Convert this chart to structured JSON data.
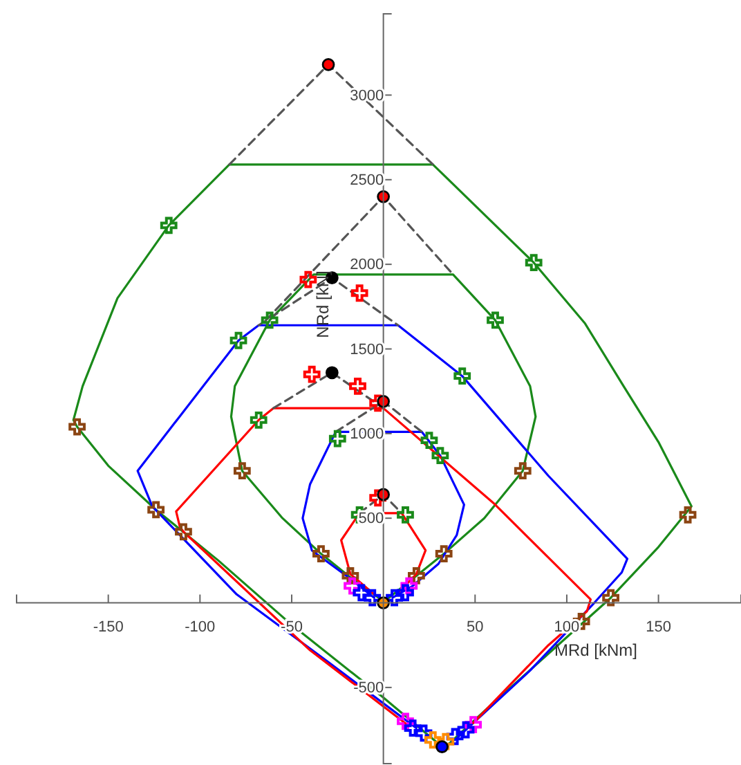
{
  "chart_data": {
    "type": "line",
    "xlabel": "MRd [kNm]",
    "ylabel": "NRd [kN]",
    "xlim": [
      -200,
      195
    ],
    "ylim": [
      -950,
      3480
    ],
    "xticks": [
      -150,
      -100,
      -50,
      50,
      100,
      150
    ],
    "yticks": [
      -500,
      500,
      1000,
      1500,
      2000,
      2500,
      3000
    ],
    "grid": false,
    "series": [
      {
        "color": "#1a8a1a",
        "marker": "none",
        "line_style": "solid",
        "x": [
          32,
          0,
          -50,
          -90,
          -124,
          -150,
          -167,
          -169,
          -164,
          -145,
          -117,
          -84,
          27,
          82,
          110,
          131,
          150,
          168,
          150,
          124,
          90,
          55,
          35
        ],
        "values": [
          -850,
          -560,
          -130,
          250,
          550,
          810,
          1040,
          1080,
          1280,
          1800,
          2230,
          2590,
          2590,
          2010,
          1650,
          1280,
          950,
          570,
          330,
          30,
          -300,
          -640,
          -840
        ]
      },
      {
        "color": "#1a8a1a",
        "marker": "none",
        "line_style": "solid",
        "x": [
          0,
          -18,
          -34,
          -55,
          -77,
          -83,
          -81,
          -62,
          -38,
          38,
          61,
          80,
          83,
          76,
          55,
          33,
          18,
          3
        ],
        "values": [
          10,
          150,
          290,
          500,
          780,
          1100,
          1280,
          1670,
          1940,
          1940,
          1670,
          1280,
          1100,
          780,
          500,
          290,
          160,
          30
        ]
      },
      {
        "color": "#0000ff",
        "marker": "none",
        "line_style": "solid",
        "x": [
          18,
          -30,
          -80,
          -126,
          -134,
          -79,
          -68,
          8,
          43,
          90,
          133,
          130,
          115,
          80,
          39
        ],
        "values": [
          -740,
          -350,
          50,
          570,
          780,
          1550,
          1640,
          1640,
          1340,
          750,
          260,
          180,
          0,
          -400,
          -810
        ]
      },
      {
        "color": "#0000ff",
        "marker": "none",
        "line_style": "solid",
        "x": [
          -5,
          -19,
          -39,
          -44,
          -40,
          -26,
          21,
          31,
          44,
          40,
          30,
          16,
          5
        ],
        "values": [
          30,
          150,
          310,
          500,
          700,
          1010,
          1010,
          870,
          580,
          400,
          230,
          100,
          30
        ]
      },
      {
        "color": "#ff0000",
        "marker": "none",
        "line_style": "solid",
        "x": [
          13,
          -40,
          -109,
          -111,
          -113,
          -68,
          -60,
          0,
          60,
          113,
          111,
          90,
          49
        ],
        "values": [
          -720,
          -280,
          420,
          450,
          540,
          1080,
          1150,
          1150,
          590,
          20,
          -50,
          -250,
          -710
        ]
      },
      {
        "color": "#ff0000",
        "marker": "none",
        "line_style": "solid",
        "x": [
          -5,
          -18,
          -23,
          -13,
          10,
          23,
          18,
          8
        ],
        "values": [
          50,
          170,
          370,
          530,
          530,
          310,
          170,
          60
        ]
      },
      {
        "color": "#555555",
        "marker": "none",
        "line_style": "dashed",
        "x": [
          -84,
          -30,
          27
        ],
        "values": [
          2590,
          3180,
          2590
        ]
      },
      {
        "color": "#555555",
        "marker": "none",
        "line_style": "dashed",
        "x": [
          -64,
          0,
          38
        ],
        "values": [
          1670,
          2400,
          1940
        ]
      },
      {
        "color": "#555555",
        "marker": "none",
        "line_style": "dashed",
        "x": [
          -68,
          -28,
          8
        ],
        "values": [
          1640,
          1920,
          1640
        ]
      },
      {
        "color": "#555555",
        "marker": "none",
        "line_style": "dashed",
        "x": [
          -60,
          -28,
          0
        ],
        "values": [
          1150,
          1360,
          1150
        ]
      },
      {
        "color": "#555555",
        "marker": "none",
        "line_style": "dashed",
        "x": [
          -26,
          0,
          21
        ],
        "values": [
          1010,
          1190,
          1010
        ]
      },
      {
        "color": "#555555",
        "marker": "none",
        "line_style": "dashed",
        "x": [
          -13,
          0,
          10
        ],
        "values": [
          530,
          640,
          530
        ]
      },
      {
        "type": "scatter",
        "color": "#1a8a1a",
        "marker": "cross",
        "x": [
          -117,
          82,
          -62,
          61,
          -79,
          43,
          -68,
          25,
          31,
          -25,
          -13,
          12
        ],
        "values": [
          2230,
          2010,
          1670,
          1670,
          1550,
          1340,
          1080,
          960,
          870,
          970,
          520,
          520
        ]
      },
      {
        "type": "scatter",
        "color": "#8b4513",
        "marker": "cross",
        "x": [
          -167,
          166,
          -124,
          124,
          -77,
          76,
          -109,
          108,
          -34,
          33,
          -18,
          18
        ],
        "values": [
          1040,
          520,
          550,
          30,
          780,
          780,
          420,
          -110,
          290,
          290,
          160,
          160
        ]
      },
      {
        "type": "scatter",
        "color": "#ff0000",
        "marker": "cross",
        "x": [
          -41,
          -13,
          -39,
          -14,
          -3,
          -3
        ],
        "values": [
          1910,
          1830,
          1350,
          1280,
          1180,
          620
        ]
      },
      {
        "type": "scatter",
        "color": "#ff00ff",
        "marker": "cross",
        "x": [
          -17,
          14,
          12,
          49
        ],
        "values": [
          100,
          100,
          -700,
          -720
        ]
      },
      {
        "type": "scatter",
        "color": "#0000ff",
        "marker": "cross",
        "x": [
          -12,
          -6,
          6,
          12,
          16,
          22,
          39,
          45
        ],
        "values": [
          60,
          30,
          30,
          60,
          -740,
          -770,
          -790,
          -750
        ]
      },
      {
        "type": "scatter",
        "color": "#ff8c00",
        "marker": "cross",
        "x": [
          27,
          34
        ],
        "values": [
          -810,
          -820
        ]
      },
      {
        "type": "scatter",
        "color": "#ff0000",
        "marker": "circle",
        "x": [
          -30,
          0,
          0,
          0
        ],
        "values": [
          3180,
          2400,
          1190,
          640
        ]
      },
      {
        "type": "scatter",
        "color": "#000000",
        "marker": "circle",
        "x": [
          -28,
          -28
        ],
        "values": [
          1920,
          1360
        ]
      },
      {
        "type": "scatter",
        "color": "#0000ff",
        "marker": "circle",
        "x": [
          32
        ],
        "values": [
          -850
        ]
      },
      {
        "type": "scatter",
        "color": "#ff8c00",
        "marker": "circle",
        "x": [
          0
        ],
        "values": [
          0
        ]
      }
    ]
  }
}
